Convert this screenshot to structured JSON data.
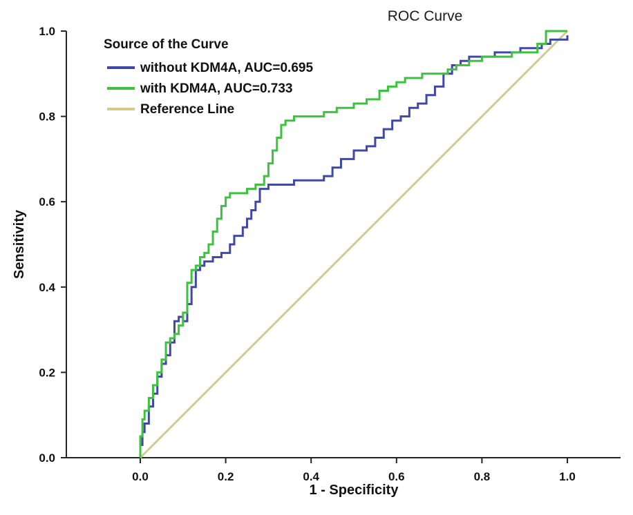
{
  "chart_data": {
    "type": "line",
    "title": "ROC Curve",
    "xlabel": "1 - Specificity",
    "ylabel": "Sensitivity",
    "xlim": [
      -0.15,
      1.15
    ],
    "ylim": [
      0.0,
      1.0
    ],
    "x_ticks": [
      "0.0",
      "0.2",
      "0.4",
      "0.6",
      "0.8",
      "1.0"
    ],
    "y_ticks": [
      "0.0",
      "0.2",
      "0.4",
      "0.6",
      "0.8",
      "1.0"
    ],
    "grid": false,
    "legend": {
      "title": "Source of the Curve",
      "placement": "top-left",
      "entries": [
        "without KDM4A, AUC=0.695",
        "with KDM4A, AUC=0.733",
        "Reference Line"
      ]
    },
    "series": [
      {
        "name": "without KDM4A, AUC=0.695",
        "color": "#3f47a8",
        "x": [
          0.0,
          0.0,
          0.005,
          0.01,
          0.02,
          0.03,
          0.04,
          0.05,
          0.06,
          0.07,
          0.08,
          0.09,
          0.1,
          0.11,
          0.12,
          0.12,
          0.13,
          0.14,
          0.15,
          0.17,
          0.19,
          0.21,
          0.22,
          0.24,
          0.25,
          0.26,
          0.27,
          0.28,
          0.28,
          0.3,
          0.33,
          0.36,
          0.4,
          0.43,
          0.45,
          0.47,
          0.5,
          0.53,
          0.55,
          0.57,
          0.59,
          0.61,
          0.63,
          0.65,
          0.67,
          0.69,
          0.71,
          0.73,
          0.75,
          0.77,
          0.8,
          0.83,
          0.86,
          0.89,
          0.92,
          0.94,
          0.96,
          0.98,
          1.0
        ],
        "y": [
          0.0,
          0.03,
          0.06,
          0.08,
          0.12,
          0.15,
          0.19,
          0.22,
          0.24,
          0.27,
          0.32,
          0.33,
          0.32,
          0.36,
          0.37,
          0.4,
          0.44,
          0.45,
          0.46,
          0.47,
          0.48,
          0.5,
          0.52,
          0.54,
          0.56,
          0.58,
          0.6,
          0.62,
          0.63,
          0.64,
          0.64,
          0.65,
          0.65,
          0.66,
          0.68,
          0.7,
          0.72,
          0.73,
          0.75,
          0.77,
          0.79,
          0.8,
          0.82,
          0.83,
          0.85,
          0.87,
          0.9,
          0.92,
          0.93,
          0.94,
          0.94,
          0.95,
          0.95,
          0.96,
          0.96,
          0.97,
          0.98,
          0.98,
          0.99
        ]
      },
      {
        "name": "with KDM4A, AUC=0.733",
        "color": "#3cc23c",
        "x": [
          0.0,
          0.0,
          0.005,
          0.01,
          0.02,
          0.03,
          0.04,
          0.05,
          0.06,
          0.07,
          0.08,
          0.09,
          0.1,
          0.11,
          0.11,
          0.12,
          0.13,
          0.14,
          0.15,
          0.16,
          0.17,
          0.18,
          0.19,
          0.2,
          0.21,
          0.22,
          0.25,
          0.27,
          0.29,
          0.3,
          0.31,
          0.32,
          0.33,
          0.34,
          0.36,
          0.38,
          0.4,
          0.43,
          0.46,
          0.5,
          0.53,
          0.56,
          0.58,
          0.6,
          0.62,
          0.66,
          0.69,
          0.72,
          0.74,
          0.77,
          0.8,
          0.84,
          0.87,
          0.9,
          0.93,
          0.95,
          0.95,
          1.0
        ],
        "y": [
          0.0,
          0.05,
          0.09,
          0.11,
          0.14,
          0.17,
          0.2,
          0.23,
          0.27,
          0.28,
          0.29,
          0.31,
          0.34,
          0.37,
          0.41,
          0.44,
          0.45,
          0.47,
          0.48,
          0.5,
          0.53,
          0.56,
          0.59,
          0.61,
          0.62,
          0.62,
          0.63,
          0.64,
          0.66,
          0.69,
          0.72,
          0.75,
          0.78,
          0.79,
          0.8,
          0.8,
          0.8,
          0.81,
          0.82,
          0.83,
          0.84,
          0.86,
          0.87,
          0.88,
          0.89,
          0.9,
          0.9,
          0.91,
          0.92,
          0.93,
          0.94,
          0.94,
          0.95,
          0.95,
          0.97,
          0.98,
          1.0,
          1.0
        ]
      },
      {
        "name": "Reference Line",
        "color": "#d6c98e",
        "x": [
          0.0,
          1.0
        ],
        "y": [
          0.0,
          1.0
        ]
      }
    ]
  }
}
